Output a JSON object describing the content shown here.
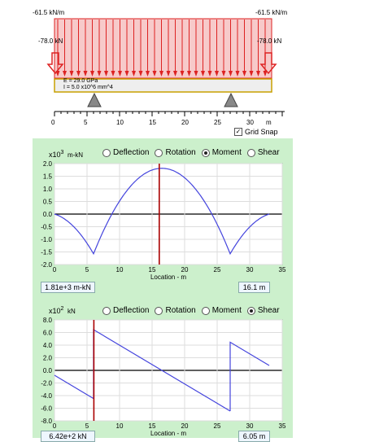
{
  "beam_panel": {
    "load_left": "-61.5 kN/m",
    "load_right": "-61.5 kN/m",
    "point_left": "-78.0 kN",
    "point_right": "-78.0 kN",
    "modulus": "E = 29.0 GPa",
    "inertia": "I = 5.0 x10^6 mm^4",
    "ruler_ticks": [
      "0",
      "5",
      "10",
      "15",
      "20",
      "25",
      "30"
    ],
    "ruler_unit": "m",
    "grid_snap_label": "Grid Snap",
    "grid_snap_checked": true
  },
  "plot_options": [
    "Deflection",
    "Rotation",
    "Moment",
    "Shear"
  ],
  "moment_panel": {
    "selected": "Moment",
    "scale_label": "x10",
    "scale_exp": "3",
    "unit_label": "m-kN",
    "yticks": [
      "2.0",
      "1.5",
      "1.0",
      "0.5",
      "0.0",
      "-0.5",
      "-1.0",
      "-1.5",
      "-2.0"
    ],
    "xticks": [
      "0",
      "5",
      "10",
      "15",
      "20",
      "25",
      "30",
      "35"
    ],
    "xlabel": "Location - m",
    "value_readout": "1.81e+3 m-kN",
    "location_readout": "16.1 m"
  },
  "shear_panel": {
    "selected": "Shear",
    "scale_label": "x10",
    "scale_exp": "2",
    "unit_label": "kN",
    "yticks": [
      "8.0",
      "6.0",
      "4.0",
      "2.0",
      "0.0",
      "-2.0",
      "-4.0",
      "-6.0",
      "-8.0"
    ],
    "xticks": [
      "0",
      "5",
      "10",
      "15",
      "20",
      "25",
      "30",
      "35"
    ],
    "xlabel": "Location - m",
    "value_readout": "6.42e+2 kN",
    "location_readout": "6.05 m"
  },
  "colors": {
    "panel_bg": "#ccf0cc",
    "curve": "#4444dd",
    "cursor": "#aa0000",
    "load": "#dd2222"
  }
}
